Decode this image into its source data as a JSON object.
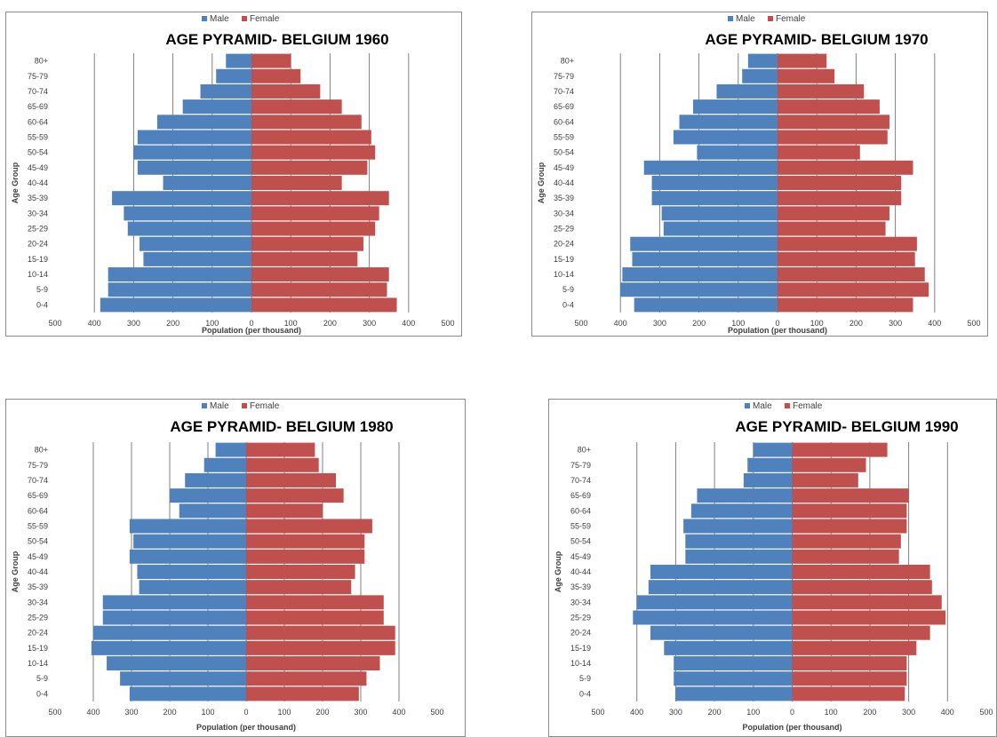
{
  "colors": {
    "male": "#4f81bd",
    "female": "#c0504d",
    "grid": "#808080"
  },
  "chart_data": [
    {
      "type": "bar",
      "orientation": "horizontal-pyramid",
      "title": "AGE PYRAMID- BELGIUM 1960",
      "xlabel": "Population (per thousand)",
      "ylabel": "Age Group",
      "xlim": [
        -500,
        500
      ],
      "xticks": [
        "500",
        "400",
        "300",
        "200",
        "100",
        "0",
        "100",
        "200",
        "300",
        "400",
        "500"
      ],
      "grid": "vertical",
      "legend": "top-center",
      "categories": [
        "0-4",
        "5-9",
        "10-14",
        "15-19",
        "20-24",
        "25-29",
        "30-34",
        "35-39",
        "40-44",
        "45-49",
        "50-54",
        "55-59",
        "60-64",
        "65-69",
        "70-74",
        "75-79",
        "80+"
      ],
      "series": [
        {
          "name": "Male",
          "values": [
            385,
            365,
            365,
            275,
            285,
            315,
            325,
            355,
            225,
            290,
            300,
            290,
            240,
            175,
            130,
            90,
            65
          ]
        },
        {
          "name": "Female",
          "values": [
            370,
            345,
            350,
            270,
            285,
            315,
            325,
            350,
            230,
            295,
            315,
            305,
            280,
            230,
            175,
            125,
            100
          ]
        }
      ]
    },
    {
      "type": "bar",
      "orientation": "horizontal-pyramid",
      "title": "AGE PYRAMID- BELGIUM 1970",
      "xlabel": "Population (per thousand)",
      "ylabel": "Age Group",
      "xlim": [
        -500,
        500
      ],
      "xticks": [
        "500",
        "400",
        "300",
        "200",
        "100",
        "0",
        "100",
        "200",
        "300",
        "400",
        "500"
      ],
      "grid": "vertical",
      "legend": "top-center",
      "categories": [
        "0-4",
        "5-9",
        "10-14",
        "15-19",
        "20-24",
        "25-29",
        "30-34",
        "35-39",
        "40-44",
        "45-49",
        "50-54",
        "55-59",
        "60-64",
        "65-69",
        "70-74",
        "75-79",
        "80+"
      ],
      "series": [
        {
          "name": "Male",
          "values": [
            365,
            400,
            395,
            370,
            375,
            290,
            295,
            320,
            320,
            340,
            205,
            265,
            250,
            215,
            155,
            90,
            75
          ]
        },
        {
          "name": "Female",
          "values": [
            345,
            385,
            375,
            350,
            355,
            275,
            285,
            315,
            315,
            345,
            210,
            280,
            285,
            260,
            220,
            145,
            125
          ]
        }
      ]
    },
    {
      "type": "bar",
      "orientation": "horizontal-pyramid",
      "title": "AGE PYRAMID- BELGIUM 1980",
      "xlabel": "Population (per thousand)",
      "ylabel": "Age Group",
      "xlim": [
        -500,
        500
      ],
      "xticks": [
        "500",
        "400",
        "300",
        "200",
        "100",
        "0",
        "100",
        "200",
        "300",
        "400",
        "500"
      ],
      "grid": "vertical",
      "legend": "top-center",
      "categories": [
        "0-4",
        "5-9",
        "10-14",
        "15-19",
        "20-24",
        "25-29",
        "30-34",
        "35-39",
        "40-44",
        "45-49",
        "50-54",
        "55-59",
        "60-64",
        "65-69",
        "70-74",
        "75-79",
        "80+"
      ],
      "series": [
        {
          "name": "Male",
          "values": [
            305,
            330,
            365,
            405,
            400,
            375,
            375,
            280,
            285,
            305,
            295,
            305,
            175,
            200,
            160,
            110,
            80
          ]
        },
        {
          "name": "Female",
          "values": [
            295,
            315,
            350,
            390,
            390,
            360,
            360,
            275,
            285,
            310,
            310,
            330,
            200,
            255,
            235,
            190,
            180
          ]
        }
      ]
    },
    {
      "type": "bar",
      "orientation": "horizontal-pyramid",
      "title": "AGE PYRAMID- BELGIUM 1990",
      "xlabel": "Population (per thousand)",
      "ylabel": "Age Group",
      "xlim": [
        -500,
        500
      ],
      "xticks": [
        "500",
        "400",
        "300",
        "200",
        "100",
        "0",
        "100",
        "200",
        "300",
        "400",
        "500"
      ],
      "grid": "vertical",
      "legend": "top-center",
      "categories": [
        "0-4",
        "5-9",
        "10-14",
        "15-19",
        "20-24",
        "25-29",
        "30-34",
        "35-39",
        "40-44",
        "45-49",
        "50-54",
        "55-59",
        "60-64",
        "65-69",
        "70-74",
        "75-79",
        "80+"
      ],
      "series": [
        {
          "name": "Male",
          "values": [
            300,
            305,
            305,
            330,
            365,
            410,
            400,
            370,
            365,
            275,
            275,
            280,
            260,
            245,
            125,
            115,
            100
          ]
        },
        {
          "name": "Female",
          "values": [
            290,
            295,
            295,
            320,
            355,
            395,
            385,
            360,
            355,
            275,
            280,
            295,
            295,
            300,
            170,
            190,
            245
          ]
        }
      ]
    }
  ]
}
